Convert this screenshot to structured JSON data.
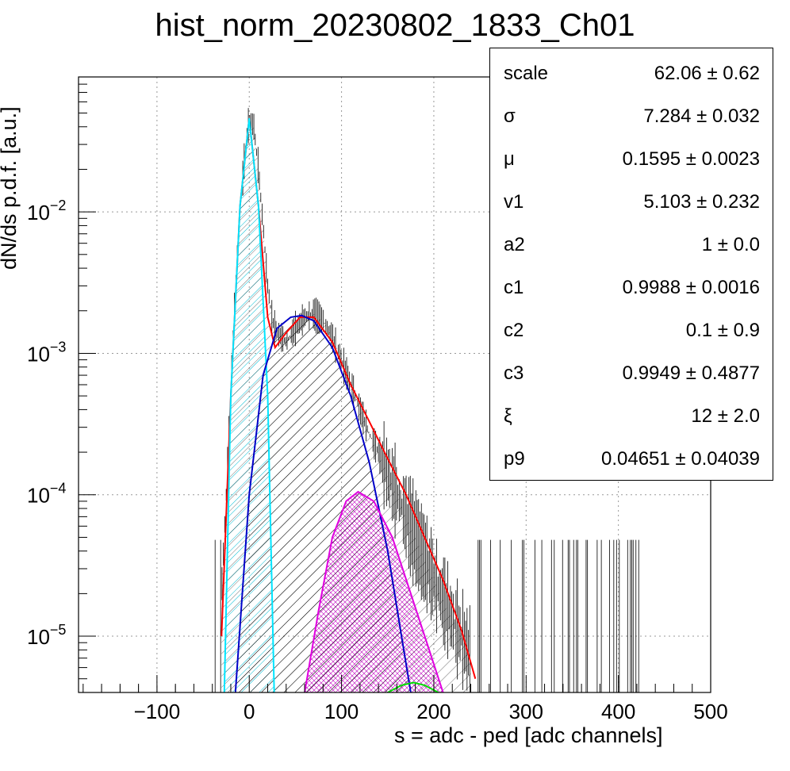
{
  "chart_data": {
    "type": "histogram",
    "title": "hist_norm_20230802_1833_Ch01",
    "xlabel": "s = adc - ped [adc channels]",
    "ylabel": "dN/ds p.d.f. [a.u.]",
    "xlim": [
      -185,
      500
    ],
    "ylim": [
      4e-06,
      0.09
    ],
    "yscale": "log",
    "grid": true,
    "xticks": [
      -100,
      0,
      100,
      200,
      300,
      400,
      500
    ],
    "xtick_labels": [
      "−100",
      "0",
      "100",
      "200",
      "300",
      "400",
      "500"
    ],
    "yticks": [
      1e-05,
      0.0001,
      0.001,
      0.01
    ],
    "ytick_labels": [
      {
        "base": "10",
        "exp": "−5"
      },
      {
        "base": "10",
        "exp": "−4"
      },
      {
        "base": "10",
        "exp": "−3"
      },
      {
        "base": "10",
        "exp": "−2"
      }
    ],
    "histogram": {
      "color": "#000000",
      "points": [
        [
          -30,
          2e-05
        ],
        [
          -25,
          0.0001
        ],
        [
          -20,
          0.0006
        ],
        [
          -15,
          0.003
        ],
        [
          -10,
          0.01
        ],
        [
          -5,
          0.025
        ],
        [
          0,
          0.046
        ],
        [
          5,
          0.04
        ],
        [
          10,
          0.02
        ],
        [
          15,
          0.008
        ],
        [
          20,
          0.003
        ],
        [
          25,
          0.0017
        ],
        [
          30,
          0.0014
        ],
        [
          40,
          0.0012
        ],
        [
          50,
          0.0015
        ],
        [
          60,
          0.0018
        ],
        [
          70,
          0.0019
        ],
        [
          80,
          0.0017
        ],
        [
          90,
          0.0013
        ],
        [
          100,
          0.0009
        ],
        [
          110,
          0.0006
        ],
        [
          120,
          0.0004
        ],
        [
          130,
          0.00027
        ],
        [
          140,
          0.0002
        ],
        [
          150,
          0.00014
        ],
        [
          160,
          0.0001
        ],
        [
          170,
          7e-05
        ],
        [
          180,
          5e-05
        ],
        [
          190,
          3.5e-05
        ],
        [
          200,
          2.5e-05
        ],
        [
          210,
          1.8e-05
        ],
        [
          220,
          1.3e-05
        ],
        [
          230,
          1e-05
        ],
        [
          240,
          7e-06
        ]
      ]
    },
    "series": [
      {
        "color": "#ff0000",
        "peak_x": 0,
        "peak_y": 0.046,
        "note": "total fit",
        "points": [
          [
            -30,
            1e-05
          ],
          [
            -20,
            0.0005
          ],
          [
            -10,
            0.011
          ],
          [
            0,
            0.046
          ],
          [
            10,
            0.011
          ],
          [
            20,
            0.0018
          ],
          [
            28,
            0.0011
          ],
          [
            40,
            0.0014
          ],
          [
            55,
            0.0018
          ],
          [
            70,
            0.0018
          ],
          [
            90,
            0.0012
          ],
          [
            110,
            0.0006
          ],
          [
            130,
            0.00033
          ],
          [
            150,
            0.00018
          ],
          [
            170,
            0.0001
          ],
          [
            190,
            5e-05
          ],
          [
            210,
            2.5e-05
          ],
          [
            230,
            1.1e-05
          ],
          [
            245,
            5e-06
          ]
        ]
      },
      {
        "color": "#00e5ff",
        "note": "pedestal gaussian",
        "points": [
          [
            -27,
            4e-06
          ],
          [
            -20,
            0.0005
          ],
          [
            -10,
            0.011
          ],
          [
            0,
            0.046
          ],
          [
            10,
            0.011
          ],
          [
            20,
            0.0005
          ],
          [
            27,
            4e-06
          ]
        ]
      },
      {
        "color": "#0000c8",
        "note": "single photo-electron",
        "points": [
          [
            -15,
            4e-06
          ],
          [
            0,
            0.0001
          ],
          [
            15,
            0.0007
          ],
          [
            30,
            0.0015
          ],
          [
            45,
            0.0018
          ],
          [
            57,
            0.00185
          ],
          [
            70,
            0.0017
          ],
          [
            90,
            0.0011
          ],
          [
            110,
            0.0005
          ],
          [
            130,
            0.00017
          ],
          [
            150,
            4e-05
          ],
          [
            165,
            1e-05
          ],
          [
            175,
            4e-06
          ]
        ]
      },
      {
        "color": "#e000e0",
        "note": "two photo-electrons",
        "points": [
          [
            60,
            4e-06
          ],
          [
            75,
            1.5e-05
          ],
          [
            90,
            5e-05
          ],
          [
            105,
            9e-05
          ],
          [
            118,
            0.000105
          ],
          [
            135,
            9e-05
          ],
          [
            155,
            5e-05
          ],
          [
            175,
            2e-05
          ],
          [
            195,
            8e-06
          ],
          [
            210,
            4e-06
          ]
        ]
      },
      {
        "color": "#00e000",
        "note": "three photo-electrons",
        "points": [
          [
            150,
            4e-06
          ],
          [
            165,
            4.5e-06
          ],
          [
            178,
            4.7e-06
          ],
          [
            190,
            4.5e-06
          ],
          [
            205,
            4e-06
          ]
        ]
      }
    ],
    "fills": [
      {
        "series_index": 1,
        "pattern": "hatch-cyan"
      },
      {
        "series_index": 2,
        "pattern": "hatch-black"
      },
      {
        "series_index": 3,
        "pattern": "hatch-magenta"
      }
    ]
  },
  "stats_box": {
    "rows": [
      {
        "key": "scale",
        "value": "62.06 ± 0.62"
      },
      {
        "key": "σ",
        "value": "7.284 ± 0.032"
      },
      {
        "key": "μ",
        "value": "0.1595 ± 0.0023"
      },
      {
        "key": "v1",
        "value": "5.103 ± 0.232"
      },
      {
        "key": "a2",
        "value": "1 ± 0.0"
      },
      {
        "key": "c1",
        "value": "0.9988 ± 0.0016"
      },
      {
        "key": "c2",
        "value": "0.1 ± 0.9"
      },
      {
        "key": "c3",
        "value": "0.9949 ± 0.4877"
      },
      {
        "key": "ξ",
        "value": "12 ± 2.0"
      },
      {
        "key": "p9",
        "value": "0.04651 ± 0.04039"
      }
    ]
  }
}
